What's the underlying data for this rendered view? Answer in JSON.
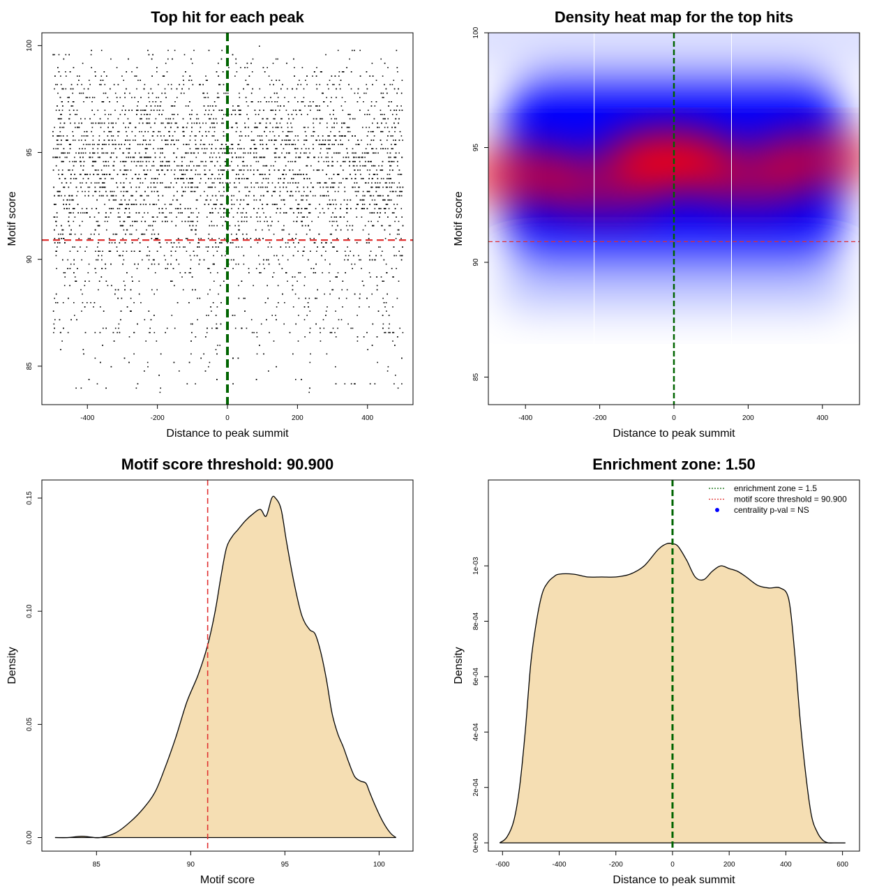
{
  "chart_data": [
    {
      "type": "scatter",
      "title": "Top hit for each peak",
      "xlabel": "Distance to peak summit",
      "ylabel": "Motif score",
      "xlim": [
        -530,
        530
      ],
      "ylim": [
        83.2,
        100.6
      ],
      "x_ticks": [
        -400,
        -200,
        0,
        200,
        400
      ],
      "y_ticks": [
        85,
        90,
        95,
        100
      ],
      "x_tick_labels": [
        "-400",
        "-200",
        "0",
        "200",
        "400"
      ],
      "y_tick_labels": [
        "85",
        "90",
        "95",
        "100"
      ],
      "vline": {
        "x": 0,
        "color": "#006400",
        "style": "dashed"
      },
      "hline": {
        "y": 90.9,
        "color": "#e03030",
        "style": "dashed"
      },
      "points_description_note": "",
      "point_color": "#000000",
      "x_range_of_points": [
        -500,
        500
      ],
      "y_distribution": {
        "mode": 94.5,
        "min": 83.8,
        "max": 100
      }
    },
    {
      "type": "heatmap",
      "title": "Density heat map for the top hits",
      "xlabel": "Distance to peak summit",
      "ylabel": "Motif score",
      "xlim": [
        -500,
        500
      ],
      "ylim": [
        83.8,
        100
      ],
      "x_ticks": [
        -400,
        -200,
        0,
        200,
        400
      ],
      "y_ticks": [
        85,
        90,
        95,
        100
      ],
      "x_tick_labels": [
        "-400",
        "-200",
        "0",
        "200",
        "400"
      ],
      "y_tick_labels": [
        "85",
        "90",
        "95",
        "100"
      ],
      "vline": {
        "x": 0,
        "color": "#006400",
        "style": "dashed"
      },
      "hline": {
        "y": 90.9,
        "color": "#e03030",
        "style": "dashed"
      },
      "white_vlines": [
        -215,
        155
      ],
      "colors": [
        "#ffffff",
        "#0000ff",
        "#ff0000"
      ],
      "hotspots": [
        {
          "x": -400,
          "y": 93.8,
          "intensity": 0.75
        },
        {
          "x": -180,
          "y": 93.2,
          "intensity": 0.55
        },
        {
          "x": -10,
          "y": 94.5,
          "intensity": 1.0
        },
        {
          "x": 200,
          "y": 93.6,
          "intensity": 0.6
        },
        {
          "x": 380,
          "y": 94.5,
          "intensity": 0.7
        }
      ]
    },
    {
      "type": "area",
      "title": "Motif score threshold: 90.900",
      "xlabel": "Motif score",
      "ylabel": "Density",
      "xlim": [
        82.1,
        101.8
      ],
      "ylim": [
        -0.006,
        0.158
      ],
      "x_ticks": [
        85,
        90,
        95,
        100
      ],
      "y_ticks": [
        0.0,
        0.05,
        0.1,
        0.15
      ],
      "x_tick_labels": [
        "85",
        "90",
        "95",
        "100"
      ],
      "y_tick_labels": [
        "0.00",
        "0.05",
        "0.10",
        "0.15"
      ],
      "vline": {
        "x": 90.9,
        "color": "#e03030",
        "style": "dashed"
      },
      "fill": "#f5deb3",
      "x": [
        82.8,
        83.5,
        84.2,
        84.7,
        85.2,
        86.0,
        86.8,
        87.5,
        88.1,
        88.6,
        89.2,
        89.8,
        90.4,
        90.9,
        91.3,
        91.6,
        91.9,
        92.2,
        92.5,
        92.9,
        93.3,
        93.7,
        94.0,
        94.3,
        94.5,
        94.8,
        95.1,
        95.5,
        95.9,
        96.3,
        96.6,
        96.9,
        97.2,
        97.5,
        97.8,
        98.1,
        98.4,
        98.7,
        99.0,
        99.3,
        99.5,
        99.8,
        100.2,
        100.6,
        100.9
      ],
      "y": [
        0.0,
        0.0,
        0.0006,
        0.0002,
        0.0,
        0.002,
        0.007,
        0.013,
        0.02,
        0.03,
        0.044,
        0.06,
        0.072,
        0.085,
        0.1,
        0.115,
        0.128,
        0.133,
        0.136,
        0.14,
        0.143,
        0.145,
        0.142,
        0.15,
        0.15,
        0.145,
        0.13,
        0.112,
        0.098,
        0.092,
        0.09,
        0.082,
        0.07,
        0.055,
        0.046,
        0.04,
        0.033,
        0.027,
        0.025,
        0.024,
        0.02,
        0.014,
        0.007,
        0.002,
        0.0
      ]
    },
    {
      "type": "area",
      "title": "Enrichment zone: 1.50",
      "xlabel": "Distance to peak summit",
      "ylabel": "Density",
      "xlim": [
        -650,
        660
      ],
      "ylim": [
        -3e-05,
        0.00131
      ],
      "x_ticks": [
        -600,
        -400,
        -200,
        0,
        200,
        400,
        600
      ],
      "y_ticks": [
        0,
        0.0002,
        0.0004,
        0.0006,
        0.0008,
        0.001
      ],
      "x_tick_labels": [
        "-600",
        "-400",
        "-200",
        "0",
        "200",
        "400",
        "600"
      ],
      "y_tick_labels": [
        "0e+00",
        "2e-04",
        "4e-04",
        "6e-04",
        "8e-04",
        "1e-03"
      ],
      "vline": {
        "x": 0,
        "color": "#006400",
        "style": "dashed"
      },
      "fill": "#f5deb3",
      "x": [
        -610,
        -585,
        -560,
        -540,
        -520,
        -500,
        -480,
        -460,
        -440,
        -420,
        -400,
        -350,
        -300,
        -250,
        -200,
        -150,
        -100,
        -50,
        -20,
        0,
        20,
        50,
        80,
        110,
        140,
        170,
        200,
        230,
        260,
        300,
        340,
        380,
        410,
        430,
        450,
        470,
        490,
        510,
        530,
        550,
        570,
        590,
        610
      ],
      "y": [
        0.0,
        2e-05,
        8e-05,
        0.0002,
        0.0004,
        0.00065,
        0.0008,
        0.0009,
        0.00094,
        0.00096,
        0.00097,
        0.00097,
        0.00096,
        0.00096,
        0.00096,
        0.00097,
        0.001,
        0.00106,
        0.00108,
        0.00108,
        0.00107,
        0.00102,
        0.00096,
        0.00095,
        0.00098,
        0.001,
        0.00099,
        0.00098,
        0.00096,
        0.00093,
        0.00092,
        0.00092,
        0.00088,
        0.0007,
        0.00045,
        0.00025,
        0.0001,
        4e-05,
        1e-05,
        0.0,
        0.0,
        0.0,
        0.0
      ],
      "legend": [
        {
          "label": "enrichment zone = 1.5",
          "kind": "dotted-line",
          "color": "#006400"
        },
        {
          "label": "motif score threshold = 90.900",
          "kind": "dotted-line",
          "color": "#e03030"
        },
        {
          "label": "centrality p-val = NS",
          "kind": "point",
          "color": "#0000ff"
        }
      ],
      "legend_position": "top-right"
    }
  ]
}
